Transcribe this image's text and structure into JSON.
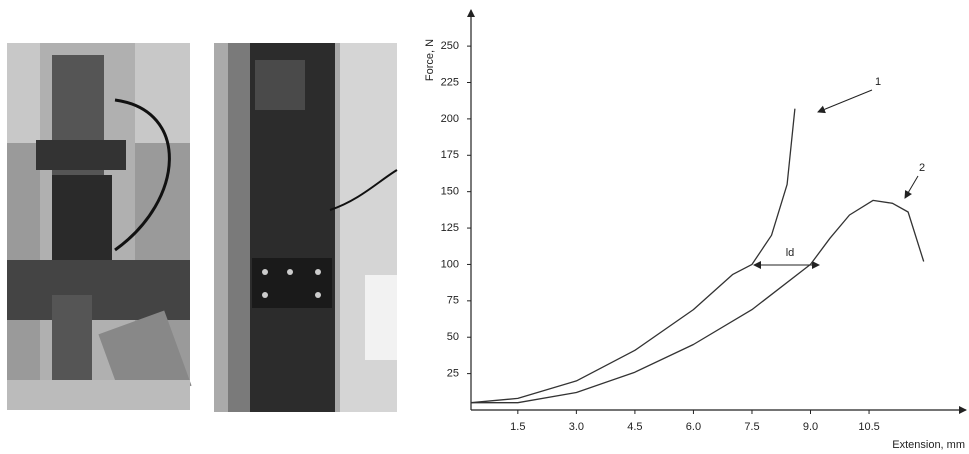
{
  "chart_data": {
    "type": "line",
    "xlabel": "Extension, mm",
    "ylabel": "Force, N",
    "xlim": [
      0.3,
      12.6
    ],
    "ylim": [
      0,
      270
    ],
    "xticks": [
      1.5,
      {
        "value": 3,
        "label": "3.0"
      },
      4.5,
      {
        "value": 6,
        "label": "6.0"
      },
      7.5,
      {
        "value": 9,
        "label": "9.0"
      },
      10.5
    ],
    "yticks": [
      25,
      50,
      75,
      100,
      125,
      150,
      175,
      200,
      225,
      250
    ],
    "grid": false,
    "series": [
      {
        "name": "1",
        "color": "#333333",
        "x": [
          0.3,
          1.5,
          3.0,
          4.5,
          6.0,
          7.0,
          7.5,
          8.0,
          8.4,
          8.6
        ],
        "values": [
          5,
          8,
          20,
          41,
          69,
          93,
          100,
          120,
          155,
          207
        ]
      },
      {
        "name": "2",
        "color": "#333333",
        "x": [
          0.3,
          1.5,
          3.0,
          4.5,
          6.0,
          7.5,
          9.0,
          9.5,
          10.0,
          10.6,
          11.1,
          11.5,
          11.9
        ],
        "values": [
          5,
          5,
          12,
          26,
          45,
          69,
          100,
          118,
          134,
          144,
          142,
          136,
          102
        ]
      }
    ],
    "annotations": [
      {
        "text": "ld"
      }
    ]
  }
}
